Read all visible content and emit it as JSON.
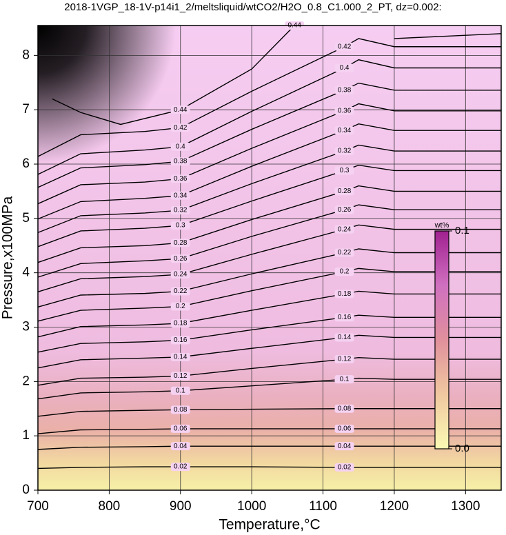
{
  "chart_data": {
    "type": "contour",
    "title": "2018-1VGP_18-1V-p14i1_2/meltsliquid/wtCO2/H2O_0.8_C1.000_2_PT, dz=0.002:",
    "xlabel": "Temperature,°C",
    "ylabel": "Pressure,x100MPa",
    "xlim": [
      700,
      1350
    ],
    "ylim": [
      0,
      8.55
    ],
    "xticks": [
      700,
      800,
      900,
      1000,
      1100,
      1200,
      1300
    ],
    "yticks": [
      0,
      1,
      2,
      3,
      4,
      5,
      6,
      7,
      8
    ],
    "grid": true,
    "line_color": "#000000",
    "x": [
      700,
      760,
      850,
      900,
      1000,
      1130,
      1150,
      1200,
      1350
    ],
    "series": [
      {
        "name": "0.02",
        "values": [
          0.4,
          0.42,
          0.43,
          0.43,
          0.43,
          0.42,
          0.42,
          0.42,
          0.42
        ]
      },
      {
        "name": "0.04",
        "values": [
          0.75,
          0.79,
          0.8,
          0.81,
          0.81,
          0.81,
          0.81,
          0.81,
          0.81
        ]
      },
      {
        "name": "0.06",
        "values": [
          1.04,
          1.11,
          1.12,
          1.13,
          1.13,
          1.13,
          1.13,
          1.13,
          1.13
        ]
      },
      {
        "name": "0.08",
        "values": [
          1.36,
          1.45,
          1.47,
          1.48,
          1.49,
          1.5,
          1.5,
          1.5,
          1.5
        ]
      },
      {
        "name": "0.1",
        "values": [
          1.68,
          1.79,
          1.81,
          1.83,
          1.92,
          2.04,
          2.06,
          2.04,
          2.04
        ]
      },
      {
        "name": "0.12",
        "values": [
          1.93,
          2.06,
          2.08,
          2.1,
          2.24,
          2.41,
          2.44,
          2.41,
          2.41
        ]
      },
      {
        "name": "0.14",
        "values": [
          2.25,
          2.4,
          2.43,
          2.45,
          2.61,
          2.81,
          2.85,
          2.81,
          2.81
        ]
      },
      {
        "name": "0.16",
        "values": [
          2.54,
          2.7,
          2.73,
          2.76,
          2.95,
          3.18,
          3.22,
          3.18,
          3.18
        ]
      },
      {
        "name": "0.18",
        "values": [
          2.82,
          3.01,
          3.04,
          3.07,
          3.31,
          3.61,
          3.66,
          3.61,
          3.61
        ]
      },
      {
        "name": "0.2",
        "values": [
          3.11,
          3.31,
          3.35,
          3.38,
          3.67,
          4.02,
          4.08,
          4.02,
          4.02
        ]
      },
      {
        "name": "0.22",
        "values": [
          3.37,
          3.59,
          3.62,
          3.66,
          3.98,
          4.37,
          4.44,
          4.37,
          4.37
        ]
      },
      {
        "name": "0.24",
        "values": [
          3.65,
          3.89,
          3.93,
          3.97,
          4.34,
          4.8,
          4.88,
          4.8,
          4.8
        ]
      },
      {
        "name": "0.26",
        "values": [
          3.92,
          4.17,
          4.22,
          4.26,
          4.67,
          5.16,
          5.25,
          5.16,
          5.16
        ]
      },
      {
        "name": "0.28",
        "values": [
          4.19,
          4.46,
          4.5,
          4.55,
          4.98,
          5.5,
          5.6,
          5.5,
          5.5
        ]
      },
      {
        "name": "0.3",
        "values": [
          4.48,
          4.77,
          4.82,
          4.87,
          5.32,
          5.88,
          5.98,
          5.88,
          5.88
        ]
      },
      {
        "name": "0.32",
        "values": [
          4.74,
          5.05,
          5.1,
          5.15,
          5.64,
          6.24,
          6.35,
          6.24,
          6.24
        ]
      },
      {
        "name": "0.34",
        "values": [
          4.99,
          5.31,
          5.37,
          5.42,
          5.96,
          6.62,
          6.74,
          6.62,
          6.62
        ]
      },
      {
        "name": "0.36",
        "values": [
          5.27,
          5.62,
          5.67,
          5.73,
          6.29,
          6.98,
          7.11,
          6.98,
          6.98
        ]
      },
      {
        "name": "0.38",
        "values": [
          5.57,
          5.93,
          5.99,
          6.05,
          6.64,
          7.36,
          7.49,
          7.36,
          7.36
        ]
      },
      {
        "name": "0.4",
        "values": [
          5.81,
          6.19,
          6.26,
          6.32,
          6.97,
          7.77,
          7.92,
          7.77,
          7.77
        ]
      },
      {
        "name": "0.42",
        "values": [
          6.14,
          6.54,
          6.6,
          6.67,
          7.34,
          8.16,
          8.31,
          8.16,
          8.16
        ]
      },
      {
        "name": "0.44",
        "x": [
          720,
          760,
          816,
          900,
          1000,
          1060,
          1150,
          1200,
          1350
        ],
        "values": [
          7.2,
          6.95,
          6.73,
          7.0,
          7.75,
          8.55,
          null,
          8.31,
          8.4
        ]
      }
    ],
    "colorbar": {
      "title": "wt%",
      "lim": [
        0,
        0.1
      ],
      "ticks": [
        {
          "value": 0,
          "label": "0.0"
        },
        {
          "value": 0.1,
          "label": "0.1"
        }
      ],
      "colors": [
        "#fafab4",
        "#f0c8a0",
        "#e0909c",
        "#d070c0",
        "#a02090"
      ]
    }
  }
}
